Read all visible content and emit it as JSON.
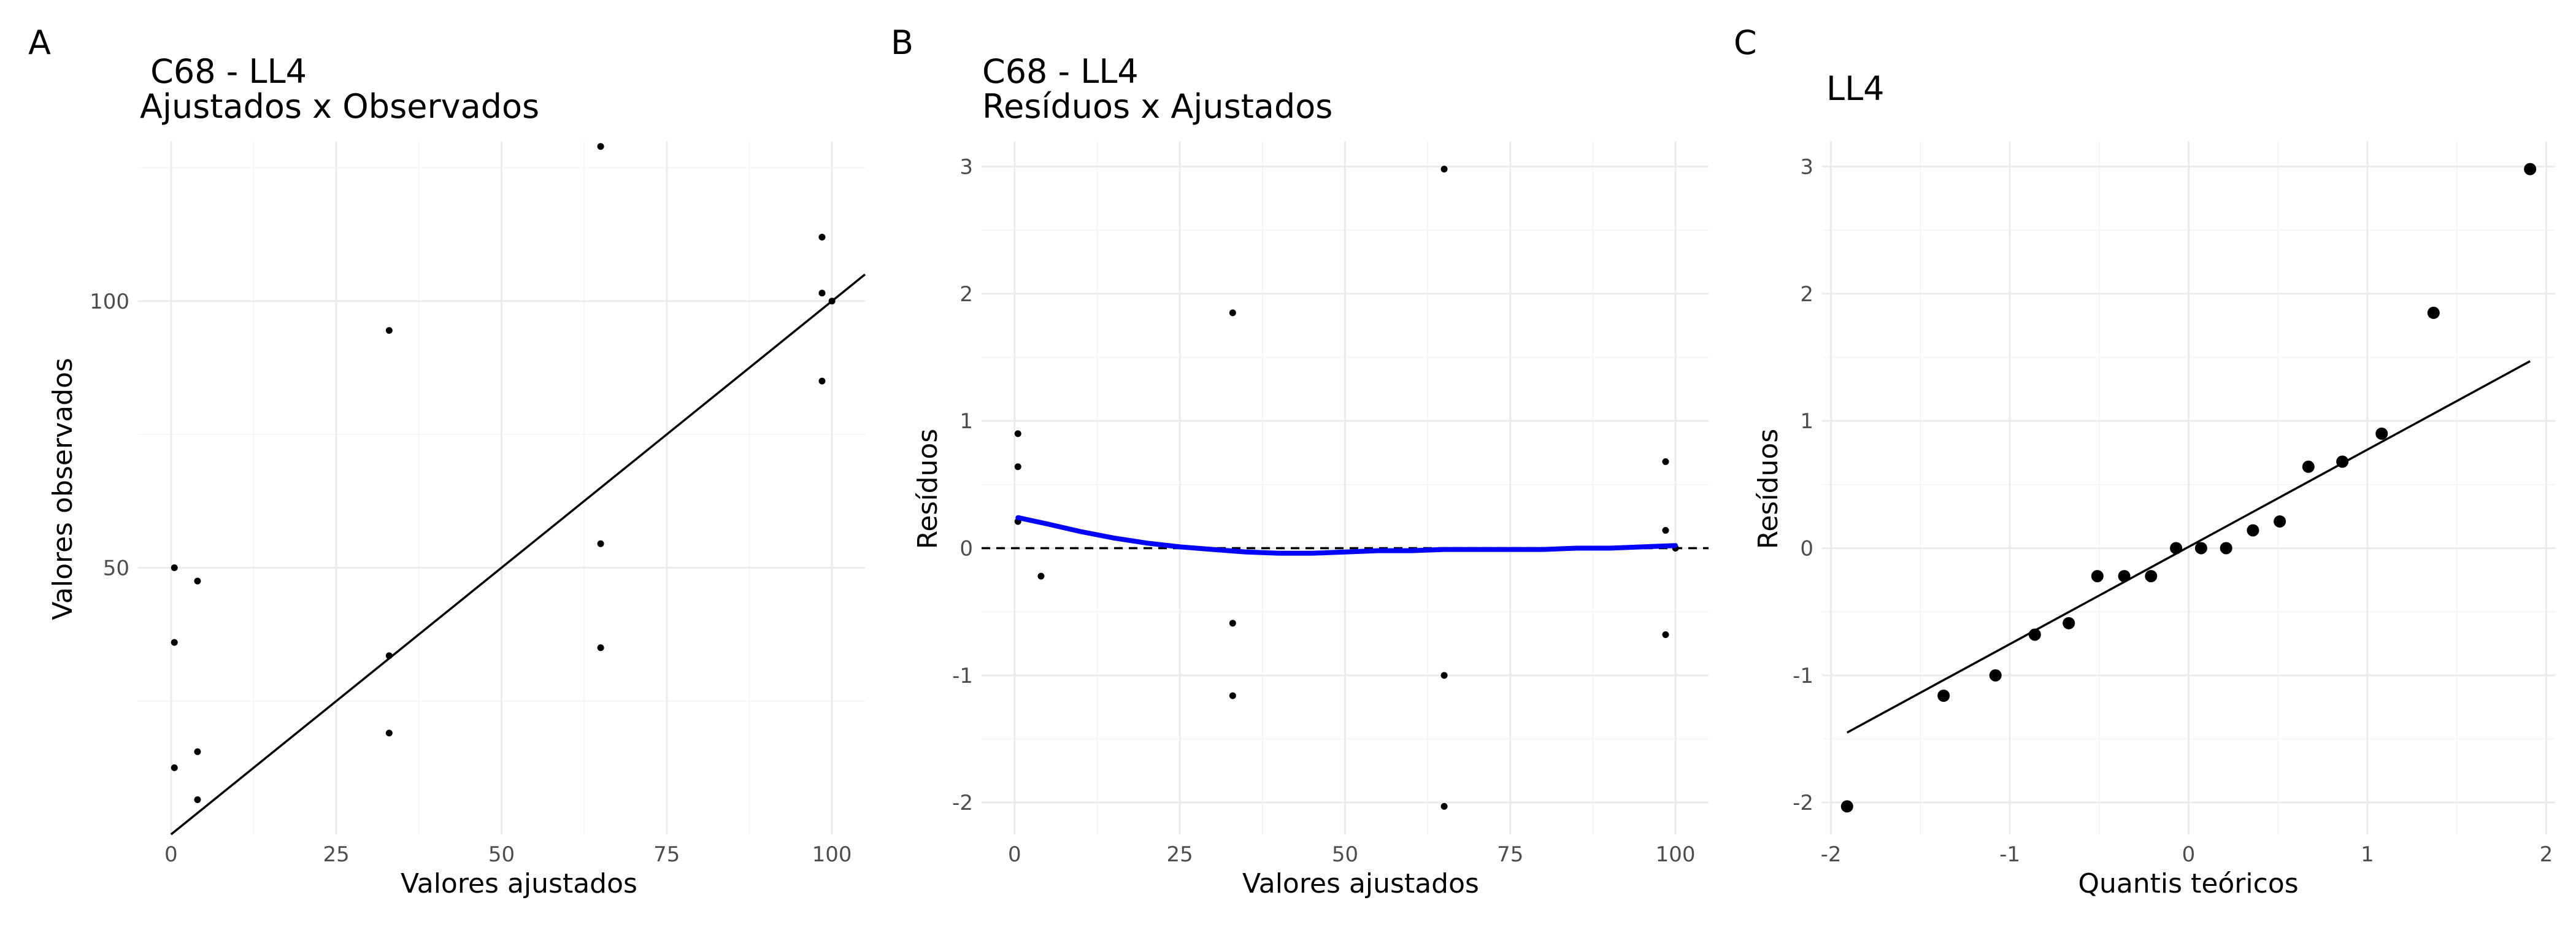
{
  "chart_data": [
    {
      "panel": "A",
      "type": "scatter",
      "title": [
        "C68 - LL4",
        "Ajustados x Observados"
      ],
      "xlabel": "Valores ajustados",
      "ylabel": "Valores observados",
      "xlim": [
        -5,
        105
      ],
      "ylim": [
        0,
        130
      ],
      "x_ticks": [
        0,
        25,
        50,
        75,
        100
      ],
      "x_tick_labels": [
        "0",
        "25",
        "50",
        "75",
        "100"
      ],
      "y_ticks": [
        50,
        100
      ],
      "y_tick_labels": [
        "50",
        "100"
      ],
      "series": [
        {
          "name": "observed",
          "points": [
            [
              0.5,
              50.0
            ],
            [
              0.5,
              36.0
            ],
            [
              0.5,
              12.5
            ],
            [
              4.0,
              47.5
            ],
            [
              4.0,
              15.5
            ],
            [
              4.0,
              6.5
            ],
            [
              33.0,
              94.5
            ],
            [
              33.0,
              33.5
            ],
            [
              33.0,
              19.0
            ],
            [
              65.0,
              129.0
            ],
            [
              65.0,
              54.5
            ],
            [
              65.0,
              35.0
            ],
            [
              98.5,
              112.0
            ],
            [
              98.5,
              101.5
            ],
            [
              98.5,
              85.0
            ],
            [
              100.0,
              100.0
            ]
          ]
        }
      ],
      "reference_line": {
        "kind": "identity",
        "from": [
          0,
          0
        ],
        "to": [
          105,
          105
        ]
      }
    },
    {
      "panel": "B",
      "type": "scatter",
      "title": [
        "C68 - LL4",
        "Resíduos x Ajustados"
      ],
      "xlabel": "Valores ajustados",
      "ylabel": "Resíduos",
      "xlim": [
        -5,
        105
      ],
      "ylim": [
        -2.25,
        3.2
      ],
      "x_ticks": [
        0,
        25,
        50,
        75,
        100
      ],
      "x_tick_labels": [
        "0",
        "25",
        "50",
        "75",
        "100"
      ],
      "y_ticks": [
        -2,
        -1,
        0,
        1,
        2,
        3
      ],
      "y_tick_labels": [
        "-2",
        "-1",
        "0",
        "1",
        "2",
        "3"
      ],
      "series": [
        {
          "name": "residuals",
          "points": [
            [
              0.5,
              0.9
            ],
            [
              0.5,
              0.64
            ],
            [
              0.5,
              0.21
            ],
            [
              4.0,
              -0.22
            ],
            [
              33.0,
              1.85
            ],
            [
              33.0,
              -0.59
            ],
            [
              33.0,
              -1.16
            ],
            [
              65.0,
              2.98
            ],
            [
              65.0,
              -1.0
            ],
            [
              65.0,
              -2.03
            ],
            [
              98.5,
              0.68
            ],
            [
              98.5,
              0.14
            ],
            [
              98.5,
              -0.68
            ],
            [
              100.0,
              0.0
            ]
          ]
        },
        {
          "name": "smooth",
          "color": "#0000ff",
          "points": [
            [
              0.5,
              0.24
            ],
            [
              5,
              0.19
            ],
            [
              10,
              0.13
            ],
            [
              15,
              0.08
            ],
            [
              20,
              0.04
            ],
            [
              25,
              0.01
            ],
            [
              30,
              -0.01
            ],
            [
              35,
              -0.03
            ],
            [
              40,
              -0.04
            ],
            [
              45,
              -0.04
            ],
            [
              50,
              -0.03
            ],
            [
              55,
              -0.02
            ],
            [
              60,
              -0.02
            ],
            [
              65,
              -0.01
            ],
            [
              70,
              -0.01
            ],
            [
              75,
              -0.01
            ],
            [
              80,
              -0.01
            ],
            [
              85,
              0.0
            ],
            [
              90,
              0.0
            ],
            [
              95,
              0.01
            ],
            [
              100,
              0.02
            ]
          ]
        }
      ],
      "reference_line": {
        "kind": "horizontal",
        "y": 0,
        "style": "dashed"
      }
    },
    {
      "panel": "C",
      "type": "scatter",
      "title": [
        "LL4"
      ],
      "xlabel": "Quantis teóricos",
      "ylabel": "Resíduos",
      "xlim": [
        -2.05,
        2.05
      ],
      "ylim": [
        -2.25,
        3.2
      ],
      "x_ticks": [
        -2,
        -1,
        0,
        1,
        2
      ],
      "x_tick_labels": [
        "-2",
        "-1",
        "0",
        "1",
        "2"
      ],
      "y_ticks": [
        -2,
        -1,
        0,
        1,
        2,
        3
      ],
      "y_tick_labels": [
        "-2",
        "-1",
        "0",
        "1",
        "2",
        "3"
      ],
      "series": [
        {
          "name": "qq",
          "points": [
            [
              -1.91,
              -2.03
            ],
            [
              -1.37,
              -1.16
            ],
            [
              -1.08,
              -1.0
            ],
            [
              -0.86,
              -0.68
            ],
            [
              -0.67,
              -0.59
            ],
            [
              -0.51,
              -0.22
            ],
            [
              -0.36,
              -0.22
            ],
            [
              -0.21,
              -0.22
            ],
            [
              -0.07,
              0.0
            ],
            [
              0.07,
              0.0
            ],
            [
              0.21,
              0.0
            ],
            [
              0.36,
              0.14
            ],
            [
              0.51,
              0.21
            ],
            [
              0.67,
              0.64
            ],
            [
              0.86,
              0.68
            ],
            [
              1.08,
              0.9
            ],
            [
              1.37,
              1.85
            ],
            [
              1.91,
              2.98
            ]
          ]
        }
      ],
      "reference_line": {
        "kind": "qqline",
        "from": [
          -1.91,
          -1.45
        ],
        "to": [
          1.91,
          1.47
        ]
      }
    }
  ],
  "panels": {
    "A": {
      "letter": "A",
      "title_line1": " C68 - LL4",
      "title_line2": "Ajustados x Observados",
      "xlabel": "Valores ajustados",
      "ylabel": "Valores observados"
    },
    "B": {
      "letter": "B",
      "title_line1": "C68 - LL4",
      "title_line2": "Resíduos x Ajustados",
      "xlabel": "Valores ajustados",
      "ylabel": "Resíduos"
    },
    "C": {
      "letter": "C",
      "title_line1": "LL4",
      "xlabel": "Quantis teóricos",
      "ylabel": "Resíduos"
    }
  }
}
